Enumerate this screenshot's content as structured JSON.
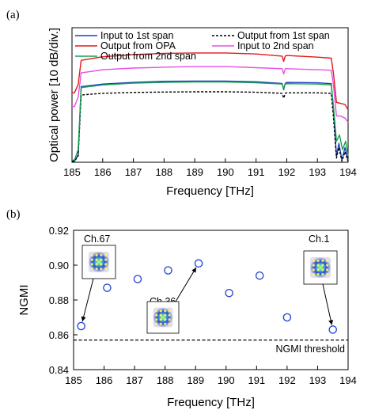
{
  "chart_data": [
    {
      "panel_label": "(a)",
      "type": "line",
      "xlabel": "Frequency [THz]",
      "ylabel": "Optical power [10 dB/div.]",
      "xlim": [
        185,
        194
      ],
      "xticks": [
        "185",
        "186",
        "187",
        "188",
        "189",
        "190",
        "191",
        "192",
        "193",
        "194"
      ],
      "ylim": [
        0,
        6.4
      ],
      "yticks_shown": false,
      "grid": false,
      "legend_position": "top",
      "series": [
        {
          "name": "Input to 1st span",
          "color": "#1f3fbf",
          "dash": "solid",
          "x": [
            185.0,
            185.08,
            185.2,
            185.3,
            186,
            187,
            188,
            189,
            190,
            191,
            191.85,
            191.9,
            191.95,
            192,
            193,
            193.45,
            193.52,
            193.62,
            193.7,
            193.8,
            193.9,
            194.0
          ],
          "y": [
            0.05,
            0.05,
            0.35,
            3.6,
            3.72,
            3.8,
            3.85,
            3.86,
            3.86,
            3.83,
            3.75,
            3.45,
            3.75,
            3.8,
            3.78,
            3.74,
            2.5,
            0.3,
            0.9,
            0.1,
            0.7,
            0.05
          ]
        },
        {
          "name": "Output from 1st span",
          "color": "#000000",
          "dash": "3,2",
          "x": [
            185.0,
            185.08,
            185.2,
            185.3,
            186,
            187,
            188,
            189,
            190,
            191,
            191.85,
            191.9,
            191.95,
            192,
            193,
            193.45,
            193.52,
            193.62,
            193.7,
            193.8,
            193.9,
            194.0
          ],
          "y": [
            0.05,
            0.05,
            0.3,
            3.2,
            3.28,
            3.32,
            3.34,
            3.35,
            3.35,
            3.33,
            3.28,
            3.05,
            3.28,
            3.3,
            3.3,
            3.28,
            2.2,
            0.2,
            0.7,
            0.05,
            0.5,
            0.05
          ]
        },
        {
          "name": "Output from OPA",
          "color": "#e11a1a",
          "dash": "solid",
          "x": [
            185.0,
            185.08,
            185.2,
            185.3,
            186,
            187,
            188,
            189,
            190,
            191,
            191.85,
            191.9,
            191.95,
            192,
            193,
            193.45,
            193.52,
            193.62,
            193.75,
            193.9,
            194.0
          ],
          "y": [
            3.3,
            3.3,
            3.7,
            4.85,
            5.02,
            5.12,
            5.18,
            5.2,
            5.2,
            5.15,
            5.05,
            4.8,
            5.05,
            5.08,
            5.0,
            4.95,
            4.25,
            2.85,
            2.8,
            2.75,
            2.5
          ]
        },
        {
          "name": "Input to 2nd span",
          "color": "#e84fe8",
          "dash": "solid",
          "x": [
            185.0,
            185.08,
            185.2,
            185.3,
            186,
            187,
            188,
            189,
            190,
            191,
            191.85,
            191.9,
            191.95,
            192,
            193,
            193.45,
            193.52,
            193.62,
            193.75,
            193.9,
            194.0
          ],
          "y": [
            2.65,
            2.65,
            3.1,
            4.25,
            4.4,
            4.48,
            4.52,
            4.55,
            4.55,
            4.5,
            4.45,
            4.2,
            4.45,
            4.45,
            4.4,
            4.38,
            3.7,
            2.2,
            2.2,
            2.1,
            1.9
          ]
        },
        {
          "name": "Output from 2nd span",
          "color": "#16a050",
          "dash": "solid",
          "x": [
            185.0,
            185.08,
            185.2,
            185.3,
            186,
            187,
            188,
            189,
            190,
            191,
            191.85,
            191.9,
            191.95,
            192,
            193,
            193.45,
            193.52,
            193.62,
            193.72,
            193.82,
            193.92,
            194.0
          ],
          "y": [
            0.1,
            0.1,
            0.6,
            3.55,
            3.68,
            3.76,
            3.8,
            3.82,
            3.82,
            3.78,
            3.72,
            3.5,
            3.72,
            3.74,
            3.72,
            3.68,
            2.7,
            1.0,
            1.3,
            0.6,
            1.0,
            0.3
          ]
        }
      ]
    },
    {
      "panel_label": "(b)",
      "type": "scatter",
      "xlabel": "Frequency [THz]",
      "ylabel": "NGMI",
      "xlim": [
        185,
        194
      ],
      "ylim": [
        0.84,
        0.92
      ],
      "xticks": [
        "185",
        "186",
        "187",
        "188",
        "189",
        "190",
        "191",
        "192",
        "193",
        "194"
      ],
      "yticks": [
        "0.84",
        "0.86",
        "0.88",
        "0.90",
        "0.92"
      ],
      "grid": false,
      "marker_color": "#1a3fd4",
      "threshold": {
        "label": "NGMI threshold",
        "value": 0.857
      },
      "x": [
        185.25,
        186.1,
        187.1,
        188.1,
        189.1,
        190.1,
        191.1,
        192.0,
        193.5
      ],
      "y": [
        0.865,
        0.887,
        0.892,
        0.897,
        0.901,
        0.884,
        0.894,
        0.87,
        0.863
      ],
      "insets": [
        {
          "label": "Ch.67",
          "points_to": [
            185.25,
            0.865
          ]
        },
        {
          "label": "Ch.36",
          "points_to": [
            189.1,
            0.901
          ]
        },
        {
          "label": "Ch.1",
          "points_to": [
            193.5,
            0.863
          ]
        }
      ]
    }
  ]
}
